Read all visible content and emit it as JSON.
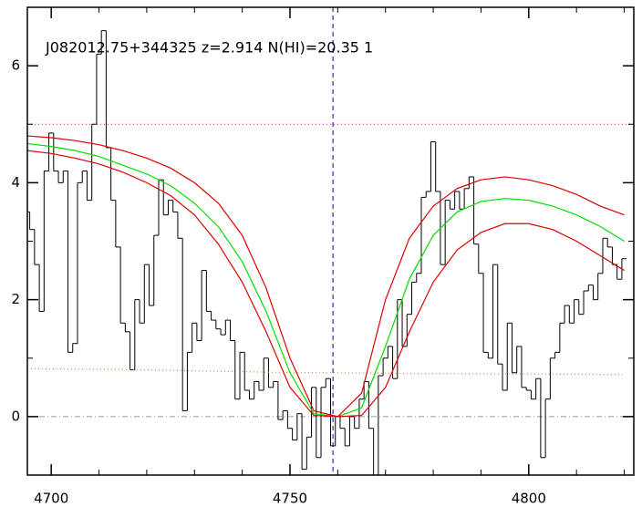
{
  "chart_data": {
    "type": "line",
    "title": "J082012.75+344325 z=2.914 N(HI)=20.35 1",
    "xlim": [
      4695,
      4822
    ],
    "ylim": [
      -1,
      7
    ],
    "xticks": [
      4700,
      4750,
      4800
    ],
    "yticks": [
      0,
      2,
      4,
      6
    ],
    "xminorticks": [
      4710,
      4720,
      4730,
      4740,
      4760,
      4770,
      4780,
      4790,
      4810,
      4820
    ],
    "yminorticks": [
      -1,
      1,
      3,
      5
    ],
    "series": [
      {
        "color": "#000000",
        "style": "steps",
        "x": [
          4695,
          4696,
          4697,
          4698,
          4699,
          4700,
          4701,
          4702,
          4703,
          4704,
          4705,
          4706,
          4707,
          4708,
          4709,
          4710,
          4711,
          4712,
          4713,
          4714,
          4715,
          4716,
          4717,
          4718,
          4719,
          4720,
          4721,
          4722,
          4723,
          4724,
          4725,
          4726,
          4727,
          4728,
          4729,
          4730,
          4731,
          4732,
          4733,
          4734,
          4735,
          4736,
          4737,
          4738,
          4739,
          4740,
          4741,
          4742,
          4743,
          4744,
          4745,
          4746,
          4747,
          4748,
          4749,
          4750,
          4751,
          4752,
          4753,
          4754,
          4755,
          4756,
          4757,
          4758,
          4759,
          4760,
          4761,
          4762,
          4763,
          4764,
          4765,
          4766,
          4767,
          4768,
          4769,
          4770,
          4771,
          4772,
          4773,
          4774,
          4775,
          4776,
          4777,
          4778,
          4779,
          4780,
          4781,
          4782,
          4783,
          4784,
          4785,
          4786,
          4787,
          4788,
          4789,
          4790,
          4791,
          4792,
          4793,
          4794,
          4795,
          4796,
          4797,
          4798,
          4799,
          4800,
          4801,
          4802,
          4803,
          4804,
          4805,
          4806,
          4807,
          4808,
          4809,
          4810,
          4811,
          4812,
          4813,
          4814,
          4815,
          4816,
          4817,
          4818,
          4819,
          4820
        ],
        "values": [
          3.5,
          3.2,
          2.6,
          1.8,
          4.2,
          4.85,
          4.2,
          4.0,
          4.2,
          1.1,
          1.25,
          4.0,
          4.2,
          3.7,
          5.0,
          6.2,
          6.6,
          4.6,
          3.7,
          2.9,
          1.6,
          1.45,
          0.8,
          2.0,
          1.6,
          2.6,
          1.9,
          3.1,
          4.05,
          3.45,
          3.7,
          3.5,
          3.05,
          0.1,
          1.1,
          1.6,
          1.3,
          2.5,
          1.8,
          1.65,
          1.5,
          1.4,
          1.65,
          1.3,
          0.3,
          1.1,
          0.45,
          0.3,
          0.6,
          0.45,
          1.0,
          0.5,
          0.6,
          -0.05,
          0.1,
          -0.2,
          -0.4,
          0.05,
          -0.9,
          -0.35,
          0.5,
          -0.7,
          0.5,
          0.65,
          -0.5,
          0,
          -0.2,
          -0.5,
          0,
          -0.2,
          0.3,
          0.6,
          -0.2,
          -1.0,
          0.7,
          1.0,
          1.2,
          0.65,
          2.0,
          1.2,
          1.75,
          2.3,
          2.45,
          3.75,
          3.85,
          4.7,
          3.85,
          2.6,
          3.7,
          3.55,
          3.85,
          3.55,
          3.9,
          4.1,
          2.95,
          2.45,
          1.1,
          1.0,
          2.6,
          0.9,
          0.45,
          1.6,
          0.75,
          1.2,
          0.5,
          0.45,
          0.3,
          0.65,
          -0.7,
          0.3,
          1.0,
          1.1,
          1.6,
          1.9,
          1.6,
          2.0,
          1.75,
          2.15,
          2.25,
          2.0,
          2.45,
          3.05,
          2.9,
          2.6,
          2.35,
          2.7
        ]
      },
      {
        "color": "#e08040",
        "style": "dotted",
        "x": [
          4695,
          4720,
          4745,
          4770,
          4795,
          4820
        ],
        "values": [
          0.82,
          0.8,
          0.76,
          0.74,
          0.73,
          0.72
        ]
      },
      {
        "color": "#00dd00",
        "style": "solid",
        "x": [
          4695,
          4700,
          4705,
          4710,
          4715,
          4720,
          4725,
          4730,
          4735,
          4740,
          4745,
          4750,
          4755,
          4760,
          4765,
          4770,
          4775,
          4780,
          4785,
          4790,
          4795,
          4800,
          4805,
          4810,
          4815,
          4820
        ],
        "values": [
          4.67,
          4.62,
          4.55,
          4.45,
          4.3,
          4.15,
          3.95,
          3.65,
          3.25,
          2.65,
          1.8,
          0.75,
          0.05,
          0.0,
          0.15,
          1.2,
          2.35,
          3.1,
          3.5,
          3.68,
          3.73,
          3.7,
          3.6,
          3.45,
          3.25,
          3.0
        ]
      },
      {
        "color": "#dd0000",
        "style": "solid",
        "x": [
          4695,
          4700,
          4705,
          4710,
          4715,
          4720,
          4725,
          4730,
          4735,
          4740,
          4745,
          4750,
          4755,
          4760,
          4765,
          4770,
          4775,
          4780,
          4785,
          4790,
          4795,
          4800,
          4805,
          4810,
          4815,
          4820
        ],
        "values": [
          4.8,
          4.77,
          4.72,
          4.65,
          4.55,
          4.42,
          4.25,
          4.0,
          3.65,
          3.1,
          2.2,
          1.0,
          0.1,
          0,
          0.4,
          2.0,
          3.05,
          3.6,
          3.9,
          4.05,
          4.1,
          4.05,
          3.95,
          3.8,
          3.6,
          3.45
        ]
      },
      {
        "color": "#dd0000",
        "style": "solid",
        "x": [
          4695,
          4700,
          4705,
          4710,
          4715,
          4720,
          4725,
          4730,
          4735,
          4740,
          4745,
          4750,
          4755,
          4760,
          4765,
          4770,
          4775,
          4780,
          4785,
          4790,
          4795,
          4800,
          4805,
          4810,
          4815,
          4820
        ],
        "values": [
          4.55,
          4.5,
          4.42,
          4.32,
          4.18,
          4.0,
          3.78,
          3.45,
          2.95,
          2.3,
          1.45,
          0.5,
          0.02,
          0,
          0.02,
          0.5,
          1.45,
          2.3,
          2.85,
          3.15,
          3.3,
          3.3,
          3.2,
          3.0,
          2.75,
          2.5
        ]
      }
    ],
    "hlines": [
      {
        "value": 5,
        "color": "#c0007f",
        "style": "dotted"
      },
      {
        "value": 0,
        "color": "#999999",
        "style": "dashdot"
      }
    ],
    "vlines": [
      {
        "value": 4759,
        "color": "#0000c0",
        "style": "dashed"
      }
    ]
  }
}
